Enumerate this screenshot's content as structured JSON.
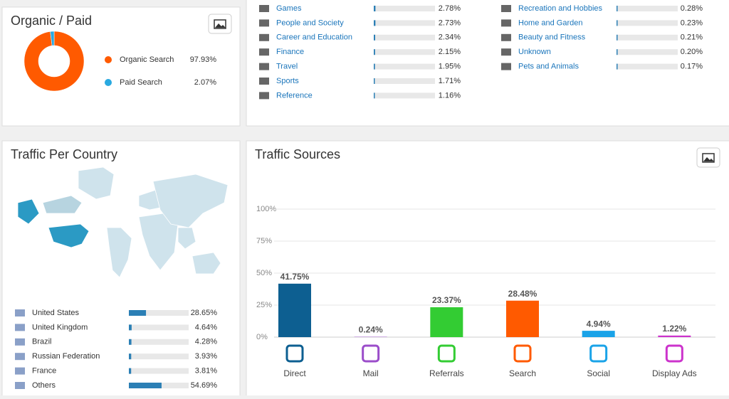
{
  "chart_data": [
    {
      "type": "pie",
      "title": "Organic / Paid",
      "categories": [
        "Organic Search",
        "Paid Search"
      ],
      "values": [
        97.93,
        2.07
      ],
      "value_labels": [
        "97.93%",
        "2.07%"
      ],
      "colors": [
        "#ff5a00",
        "#29a9e0"
      ]
    },
    {
      "type": "bar",
      "title": "Traffic Sources",
      "categories": [
        "Direct",
        "Mail",
        "Referrals",
        "Search",
        "Social",
        "Display Ads"
      ],
      "values": [
        41.75,
        0.24,
        23.37,
        28.48,
        4.94,
        1.22
      ],
      "value_labels": [
        "41.75%",
        "0.24%",
        "23.37%",
        "28.48%",
        "4.94%",
        "1.22%"
      ],
      "colors": [
        "#0d5f91",
        "#9b4dca",
        "#33cc33",
        "#ff5a00",
        "#1aa3e8",
        "#cc33cc"
      ],
      "ylim": [
        0,
        100
      ],
      "yticks": [
        {
          "value": 0,
          "label": "0%"
        },
        {
          "value": 25,
          "label": "25%"
        },
        {
          "value": 50,
          "label": "50%"
        },
        {
          "value": 75,
          "label": "75%"
        },
        {
          "value": 100,
          "label": "100%"
        }
      ],
      "grid": true
    }
  ],
  "interests": {
    "xlim": [
      0,
      100
    ],
    "left": [
      {
        "label": "Games",
        "value": 2.78,
        "value_label": "2.78%"
      },
      {
        "label": "People and Society",
        "value": 2.73,
        "value_label": "2.73%"
      },
      {
        "label": "Career and Education",
        "value": 2.34,
        "value_label": "2.34%"
      },
      {
        "label": "Finance",
        "value": 2.15,
        "value_label": "2.15%"
      },
      {
        "label": "Travel",
        "value": 1.95,
        "value_label": "1.95%"
      },
      {
        "label": "Sports",
        "value": 1.71,
        "value_label": "1.71%"
      },
      {
        "label": "Reference",
        "value": 1.16,
        "value_label": "1.16%"
      }
    ],
    "right": [
      {
        "label": "Recreation and Hobbies",
        "value": 0.28,
        "value_label": "0.28%"
      },
      {
        "label": "Home and Garden",
        "value": 0.23,
        "value_label": "0.23%"
      },
      {
        "label": "Beauty and Fitness",
        "value": 0.21,
        "value_label": "0.21%"
      },
      {
        "label": "Unknown",
        "value": 0.2,
        "value_label": "0.20%"
      },
      {
        "label": "Pets and Animals",
        "value": 0.17,
        "value_label": "0.17%"
      }
    ]
  },
  "countries": {
    "title": "Traffic Per Country",
    "xlim": [
      0,
      100
    ],
    "rows": [
      {
        "label": "United States",
        "value": 28.65,
        "value_label": "28.65%"
      },
      {
        "label": "United Kingdom",
        "value": 4.64,
        "value_label": "4.64%"
      },
      {
        "label": "Brazil",
        "value": 4.28,
        "value_label": "4.28%"
      },
      {
        "label": "Russian Federation",
        "value": 3.93,
        "value_label": "3.93%"
      },
      {
        "label": "France",
        "value": 3.81,
        "value_label": "3.81%"
      },
      {
        "label": "Others",
        "value": 54.69,
        "value_label": "54.69%"
      }
    ]
  }
}
